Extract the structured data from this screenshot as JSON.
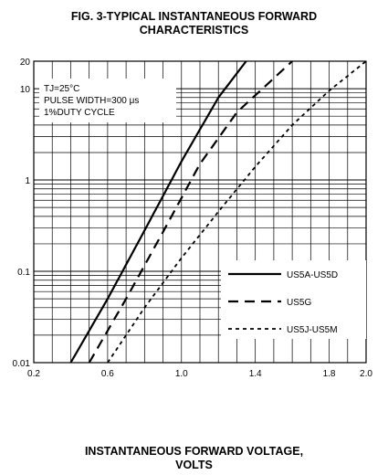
{
  "title_line1": "FIG. 3-TYPICAL INSTANTANEOUS FORWARD",
  "title_line2": "CHARACTERISTICS",
  "xlabel_line1": "INSTANTANEOUS FORWARD VOLTAGE,",
  "xlabel_line2": "VOLTS",
  "conditions": [
    "TJ=25°C",
    "PULSE WIDTH=300 μs",
    "1%DUTY CYCLE"
  ],
  "chart_data": {
    "type": "line",
    "title": "FIG. 3-TYPICAL INSTANTANEOUS FORWARD CHARACTERISTICS",
    "xlabel": "INSTANTANEOUS FORWARD VOLTAGE, VOLTS",
    "ylabel": "",
    "xlim": [
      0.2,
      2.0
    ],
    "ylim": [
      0.01,
      20
    ],
    "yscale": "log",
    "grid": true,
    "legend": "bottom-right",
    "x_ticks": [
      "0.2",
      "0.6",
      "1.0",
      "1.4",
      "1.8",
      "2.0"
    ],
    "x_tick_values": [
      0.2,
      0.6,
      1.0,
      1.4,
      1.8,
      2.0
    ],
    "y_ticks": [
      "20",
      "10",
      "1",
      "0.1",
      "0.01"
    ],
    "y_tick_values": [
      20,
      10,
      1,
      0.1,
      0.01
    ],
    "series": [
      {
        "name": "US5A-US5D",
        "style": "solid",
        "x": [
          0.4,
          0.6,
          0.8,
          1.0,
          1.2,
          1.35
        ],
        "y": [
          0.01,
          0.05,
          0.28,
          1.6,
          8.0,
          20
        ]
      },
      {
        "name": "US5G",
        "style": "dashed",
        "x": [
          0.5,
          0.7,
          0.9,
          1.1,
          1.3,
          1.6
        ],
        "y": [
          0.01,
          0.05,
          0.27,
          1.5,
          5.5,
          20
        ]
      },
      {
        "name": "US5J-US5M",
        "style": "dotted",
        "x": [
          0.6,
          0.8,
          1.0,
          1.2,
          1.4,
          1.6,
          1.8,
          2.0
        ],
        "y": [
          0.01,
          0.04,
          0.14,
          0.45,
          1.4,
          4.0,
          9.5,
          20
        ]
      }
    ]
  }
}
